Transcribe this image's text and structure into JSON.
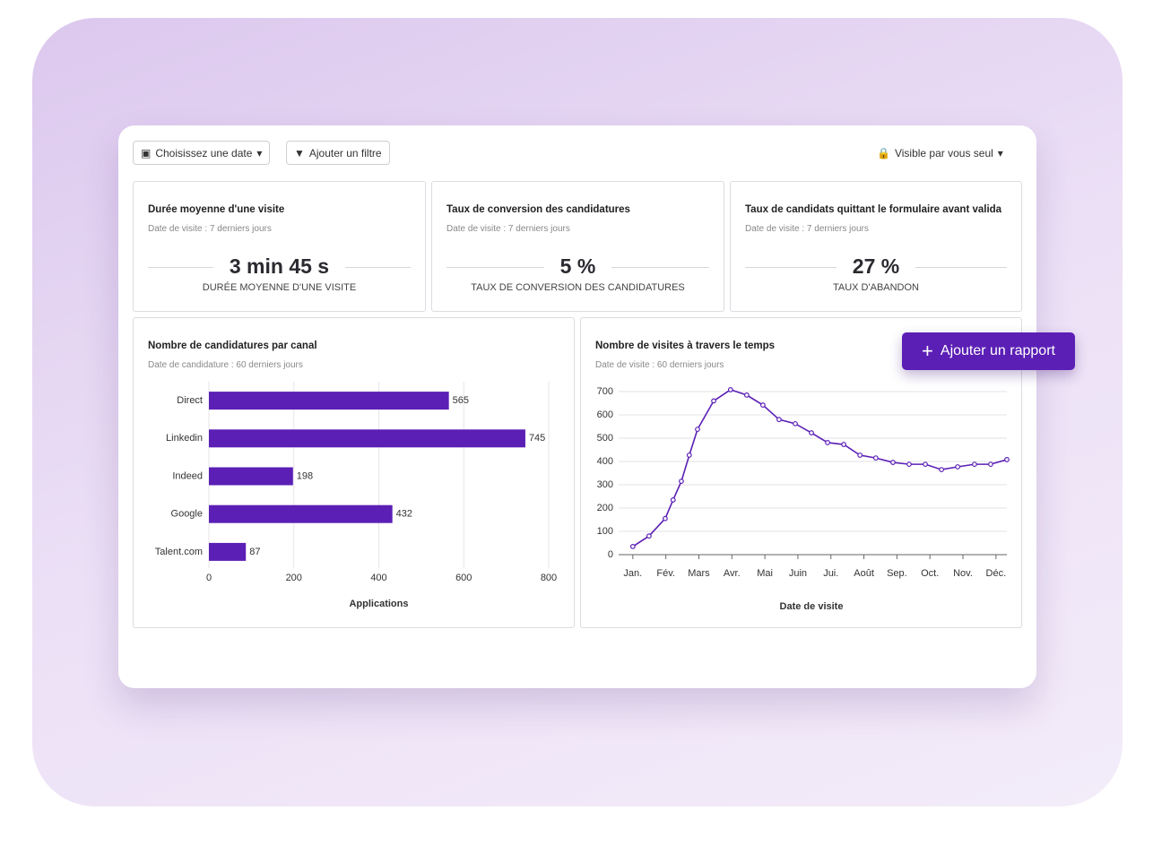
{
  "toolbar": {
    "date_button": "Choisissez une date",
    "filter_button": "Ajouter un filtre",
    "visibility": "Visible par vous seul"
  },
  "kpis": [
    {
      "title": "Durée moyenne d'une visite",
      "subtitle": "Date de visite : 7 derniers jours",
      "value": "3 min 45 s",
      "label": "DURÉE MOYENNE D'UNE VISITE"
    },
    {
      "title": "Taux de conversion des candidatures",
      "subtitle": "Date de visite : 7 derniers jours",
      "value": "5 %",
      "label": "TAUX DE CONVERSION DES CANDIDATURES"
    },
    {
      "title": "Taux de candidats quittant le formulaire avant valida",
      "subtitle": "Date de visite : 7 derniers jours",
      "value": "27 %",
      "label": "TAUX D'ABANDON"
    }
  ],
  "add_report_button": "Ajouter un rapport",
  "chart_data": [
    {
      "type": "bar",
      "orientation": "horizontal",
      "title": "Nombre de candidatures par canal",
      "subtitle": "Date de candidature : 60 derniers jours",
      "categories": [
        "Direct",
        "Linkedin",
        "Indeed",
        "Google",
        "Talent.com"
      ],
      "values": [
        565,
        745,
        198,
        432,
        87
      ],
      "color": "#5b1fb5",
      "xlim": [
        0,
        800
      ],
      "xticks": [
        0,
        200,
        400,
        600,
        800
      ],
      "xlabel": "Applications",
      "grid": true
    },
    {
      "type": "line",
      "title": "Nombre de visites à travers le temps",
      "subtitle": "Date de visite : 60 derniers jours",
      "x": [
        0,
        0.49,
        0.98,
        1.22,
        1.47,
        1.71,
        1.96,
        2.45,
        2.96,
        3.45,
        3.94,
        4.43,
        4.92,
        5.41,
        5.9,
        6.39,
        6.88,
        7.36,
        7.88,
        8.37,
        8.86,
        9.35,
        9.84,
        10.35,
        10.84,
        11.33
      ],
      "values": [
        35,
        80,
        155,
        235,
        315,
        427,
        538,
        660,
        708,
        685,
        642,
        580,
        562,
        523,
        481,
        473,
        427,
        415,
        396,
        388,
        388,
        365,
        377,
        388,
        388,
        408
      ],
      "color": "#5b1fb5",
      "xlim": [
        -0.43,
        11.33
      ],
      "xticks": [
        {
          "value": 0,
          "label": "Jan."
        },
        {
          "value": 1,
          "label": "Fév."
        },
        {
          "value": 2,
          "label": "Mars"
        },
        {
          "value": 3,
          "label": "Avr."
        },
        {
          "value": 4,
          "label": "Mai"
        },
        {
          "value": 5,
          "label": "Juin"
        },
        {
          "value": 6,
          "label": "Jui."
        },
        {
          "value": 7,
          "label": "Août"
        },
        {
          "value": 8,
          "label": "Sep."
        },
        {
          "value": 9,
          "label": "Oct."
        },
        {
          "value": 10,
          "label": "Nov."
        },
        {
          "value": 11,
          "label": "Déc."
        }
      ],
      "ylim": [
        0,
        700
      ],
      "yticks": [
        0,
        100,
        200,
        300,
        400,
        500,
        600,
        700
      ],
      "xlabel": "Date de visite",
      "grid": true
    }
  ]
}
